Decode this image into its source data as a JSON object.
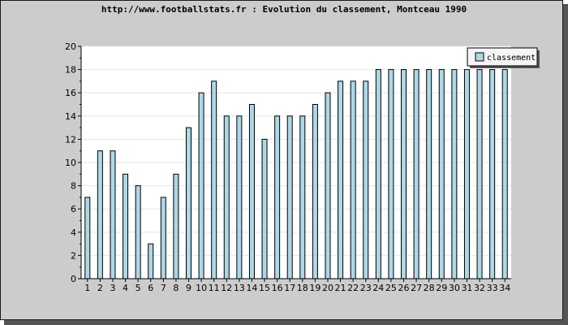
{
  "chart_data": {
    "type": "bar",
    "title": "http://www.footballstats.fr : Evolution du classement, Montceau 1990",
    "xlabel": "",
    "ylabel": "",
    "ylim": [
      0,
      20
    ],
    "yticks": [
      0,
      2,
      4,
      6,
      8,
      10,
      12,
      14,
      16,
      18,
      20
    ],
    "categories": [
      "1",
      "2",
      "3",
      "4",
      "5",
      "6",
      "7",
      "8",
      "9",
      "10",
      "11",
      "12",
      "13",
      "14",
      "15",
      "16",
      "17",
      "18",
      "19",
      "20",
      "21",
      "22",
      "23",
      "24",
      "25",
      "26",
      "27",
      "28",
      "29",
      "30",
      "31",
      "32",
      "33",
      "34"
    ],
    "series": [
      {
        "name": "classement",
        "values": [
          7,
          11,
          11,
          9,
          8,
          3,
          7,
          9,
          13,
          16,
          17,
          14,
          14,
          15,
          12,
          14,
          14,
          14,
          15,
          16,
          17,
          17,
          17,
          18,
          18,
          18,
          18,
          18,
          18,
          18,
          18,
          18,
          18,
          18
        ]
      }
    ],
    "grid": true,
    "legend_position": "top-right",
    "colors": {
      "bar_fill": "#add8e6",
      "bar_stroke": "#000000",
      "plot_bg": "#ffffff",
      "frame_bg": "#cccccc",
      "grid": "#e6e6e6"
    }
  }
}
